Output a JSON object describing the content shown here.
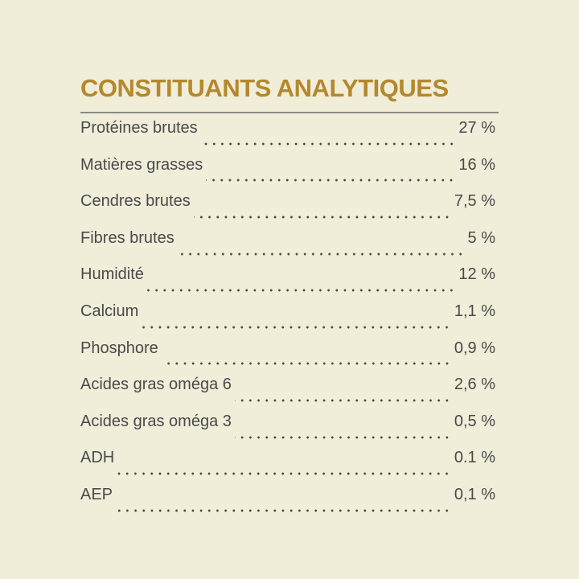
{
  "title": "CONSTITUANTS ANALYTIQUES",
  "rows": [
    {
      "label": "Protéines brutes",
      "value": "27 %"
    },
    {
      "label": "Matières grasses",
      "value": "16 %"
    },
    {
      "label": "Cendres brutes",
      "value": "7,5 %"
    },
    {
      "label": "Fibres brutes",
      "value": "5 %"
    },
    {
      "label": "Humidité",
      "value": "12 %"
    },
    {
      "label": "Calcium",
      "value": "1,1 %"
    },
    {
      "label": "Phosphore",
      "value": "0,9 %"
    },
    {
      "label": "Acides gras oméga 6",
      "value": "2,6 %"
    },
    {
      "label": "Acides gras oméga 3",
      "value": "0,5 %"
    },
    {
      "label": "ADH",
      "value": "0.1 %"
    },
    {
      "label": "AEP",
      "value": "0,1 %"
    }
  ]
}
